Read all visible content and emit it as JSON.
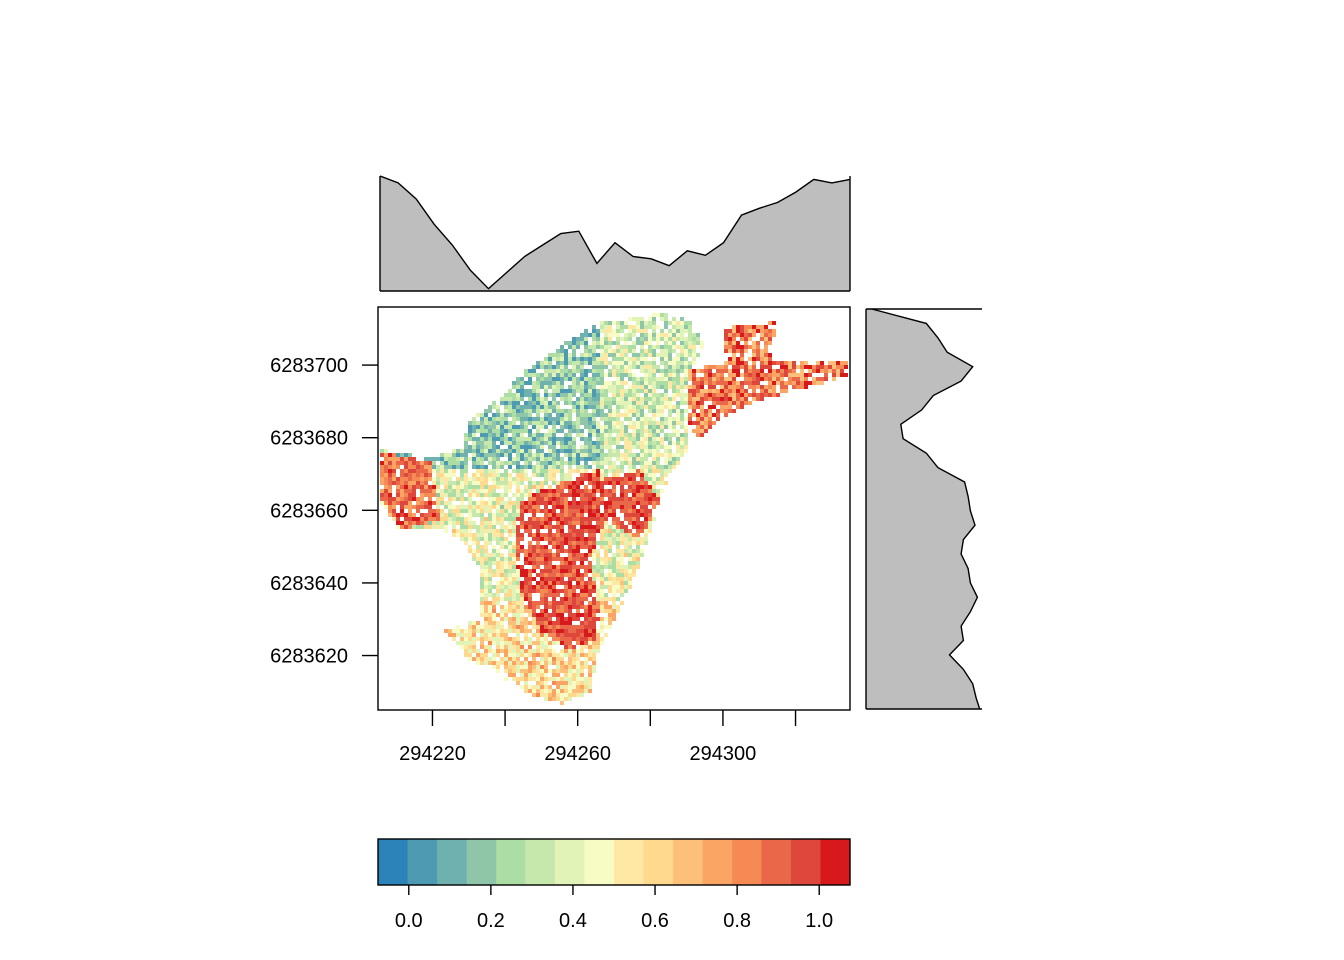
{
  "chart_data": [
    {
      "type": "heatmap",
      "name": "raster",
      "x_ticks": [
        294220,
        294240,
        294260,
        294280,
        294300,
        294320
      ],
      "x_tick_labels": [
        "294220",
        "294260",
        "294300"
      ],
      "xlim": [
        294205,
        294335
      ],
      "y_ticks": [
        6283620,
        6283640,
        6283660,
        6283680,
        6283700
      ],
      "y_tick_labels": [
        "6283620",
        "6283640",
        "6283660",
        "6283680",
        "6283700"
      ],
      "ylim": [
        6283605,
        6283716
      ],
      "zlim": [
        -0.075,
        1.075
      ],
      "xlabel": "",
      "ylabel": "",
      "title": "",
      "grid": false
    },
    {
      "type": "area",
      "name": "column-means-profile",
      "x": [
        294205,
        294210,
        294215,
        294220,
        294225,
        294230,
        294235,
        294240,
        294245,
        294250,
        294255,
        294260,
        294265,
        294270,
        294275,
        294280,
        294285,
        294290,
        294295,
        294300,
        294305,
        294310,
        294315,
        294320,
        294325,
        294330,
        294335
      ],
      "values": [
        1.0,
        0.94,
        0.8,
        0.58,
        0.4,
        0.18,
        0.02,
        0.16,
        0.3,
        0.4,
        0.5,
        0.52,
        0.24,
        0.42,
        0.3,
        0.28,
        0.22,
        0.35,
        0.31,
        0.42,
        0.66,
        0.72,
        0.77,
        0.86,
        0.97,
        0.94,
        0.97
      ]
    },
    {
      "type": "area",
      "name": "row-means-profile",
      "y": [
        6283716,
        6283712,
        6283708,
        6283704,
        6283700,
        6283696,
        6283692,
        6283688,
        6283684,
        6283680,
        6283676,
        6283672,
        6283668,
        6283664,
        6283660,
        6283656,
        6283652,
        6283648,
        6283644,
        6283640,
        6283636,
        6283632,
        6283628,
        6283624,
        6283620,
        6283616,
        6283612,
        6283608,
        6283605
      ],
      "values": [
        0.05,
        0.52,
        0.62,
        0.7,
        0.92,
        0.82,
        0.58,
        0.48,
        0.3,
        0.32,
        0.52,
        0.62,
        0.85,
        0.88,
        0.9,
        0.94,
        0.84,
        0.82,
        0.88,
        0.9,
        0.96,
        0.9,
        0.82,
        0.84,
        0.72,
        0.84,
        0.92,
        0.95,
        0.98
      ]
    },
    {
      "type": "bar",
      "name": "colour-legend",
      "categories_breaks": [
        -0.075,
        -0.003,
        0.069,
        0.141,
        0.213,
        0.284,
        0.356,
        0.428,
        0.5,
        0.572,
        0.644,
        0.716,
        0.788,
        0.859,
        0.931,
        1.003,
        1.075
      ],
      "colors": [
        "#2b83ba",
        "#4d9bb2",
        "#6fb1ae",
        "#8fc6aa",
        "#abdda4",
        "#c7e8ad",
        "#e2f3b8",
        "#f7fbc4",
        "#fee8a4",
        "#fed98e",
        "#fdc07a",
        "#fba464",
        "#f58a54",
        "#e96849",
        "#de473b",
        "#d7191c"
      ],
      "tick_values": [
        0.0,
        0.2,
        0.4,
        0.6,
        0.8,
        1.0
      ],
      "tick_labels": [
        "0.0",
        "0.2",
        "0.4",
        "0.6",
        "0.8",
        "1.0"
      ]
    }
  ]
}
